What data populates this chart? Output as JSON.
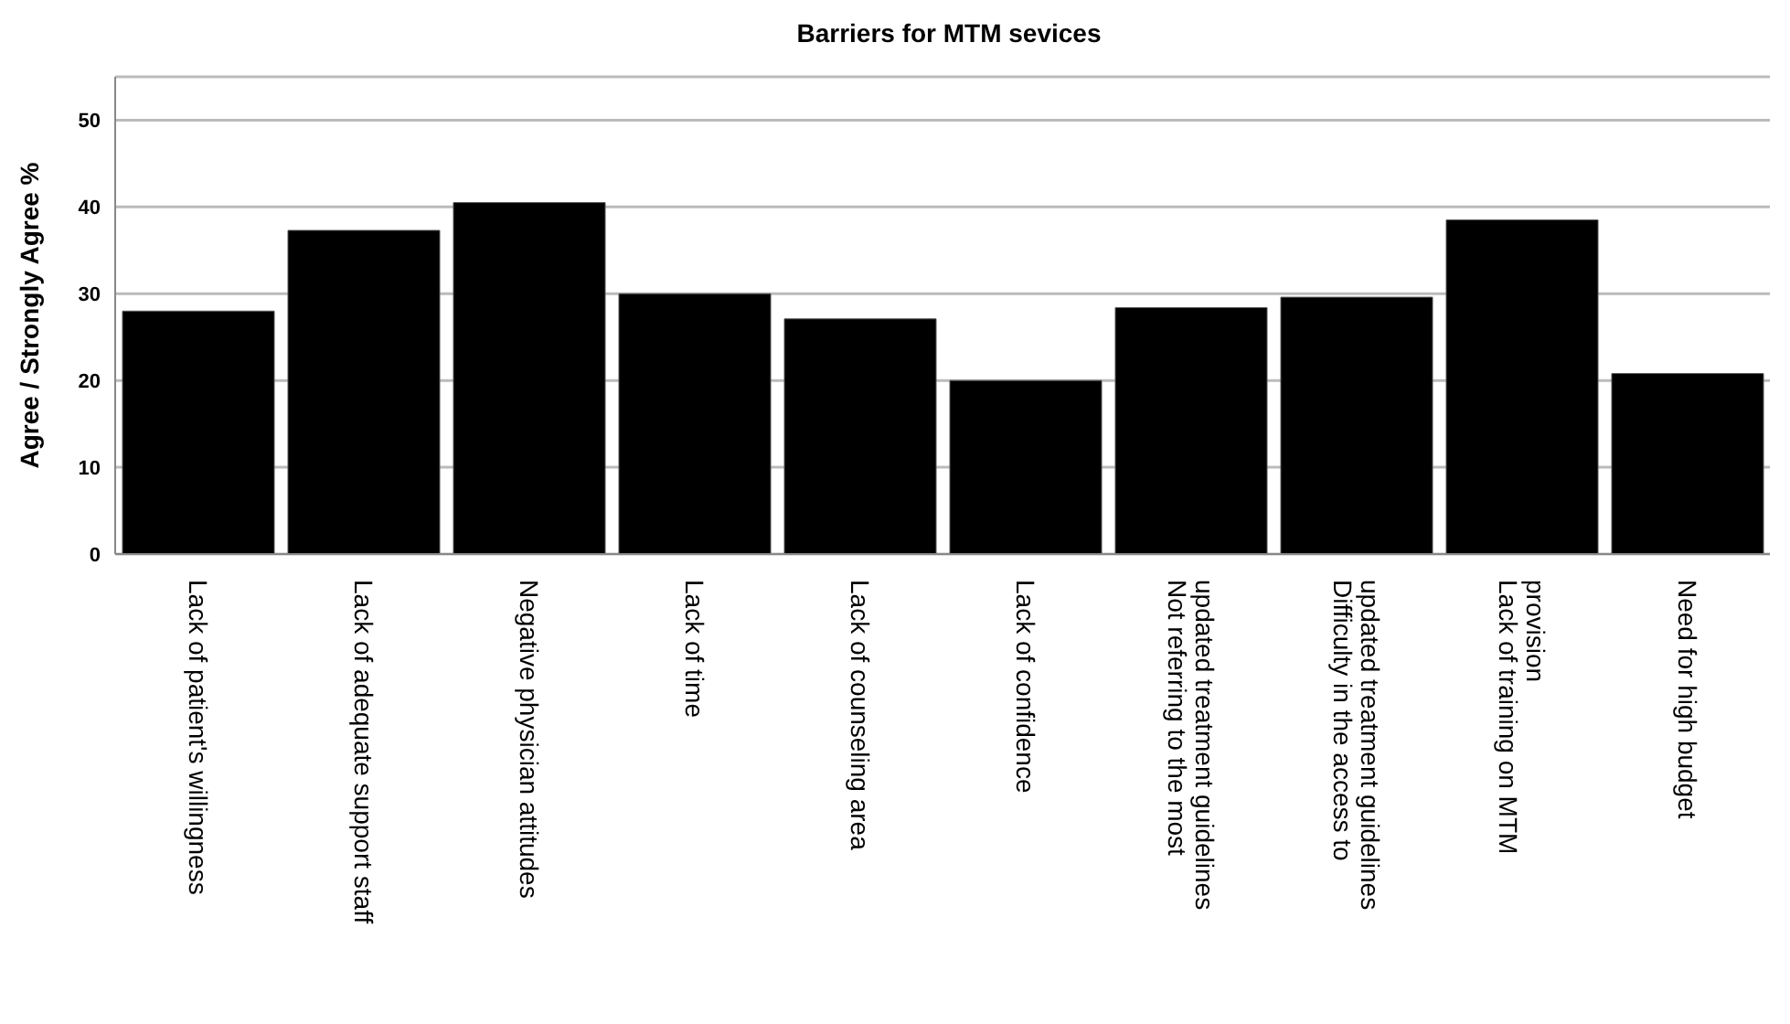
{
  "chart_data": {
    "type": "bar",
    "title": "Barriers for MTM sevices",
    "ylabel": "Agree / Strongly Agree %",
    "categories": [
      "Lack of patient's willingness",
      "Lack of adequate support staff",
      "Negative physician attitudes",
      "Lack of time",
      "Lack of counseling area",
      "Lack of confidence",
      "Not referring to the most updated treatment guidelines",
      "Difficulty in the access to updated treatment guidelines",
      "Lack of training on MTM provision",
      "Need for high budget"
    ],
    "values": [
      28,
      37.3,
      40.5,
      30,
      27.1,
      20,
      28.4,
      29.6,
      38.5,
      20.8
    ],
    "color": "#000000",
    "ylim": [
      0,
      55
    ],
    "yticks": [
      0,
      10,
      20,
      30,
      40,
      50
    ],
    "grid": "y"
  }
}
